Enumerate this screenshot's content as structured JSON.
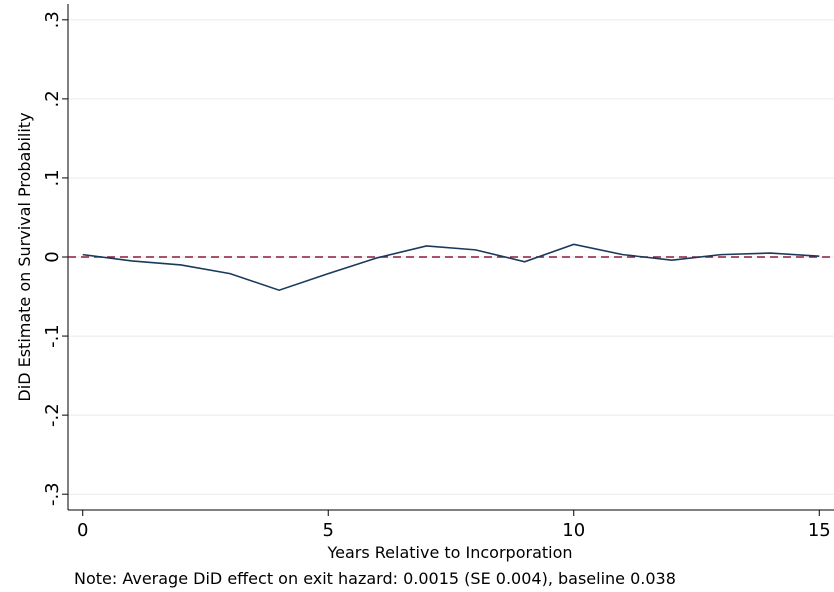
{
  "chart_data": {
    "type": "line",
    "x": [
      0,
      1,
      2,
      3,
      4,
      5,
      6,
      7,
      8,
      9,
      10,
      11,
      12,
      13,
      14,
      15
    ],
    "series": [
      {
        "name": "DiD estimate",
        "color": "#1a3a5c",
        "values": [
          0.003,
          -0.005,
          -0.01,
          -0.021,
          -0.042,
          -0.021,
          -0.001,
          0.014,
          0.009,
          -0.006,
          0.016,
          0.003,
          -0.004,
          0.003,
          0.005,
          0.001
        ]
      }
    ],
    "xlim": [
      -0.3,
      15.3
    ],
    "xticks": [
      0,
      5,
      10,
      15
    ],
    "ylim": [
      -0.32,
      0.32
    ],
    "yticks": [
      {
        "value": -0.3,
        "label": "-.3"
      },
      {
        "value": -0.2,
        "label": "-.2"
      },
      {
        "value": -0.1,
        "label": "-.1"
      },
      0,
      {
        "value": 0.1,
        "label": ".1"
      },
      {
        "value": 0.2,
        "label": ".2"
      },
      {
        "value": 0.3,
        "label": ".3"
      }
    ],
    "grid": true,
    "reference_line": {
      "value": 0,
      "color": "#8b1a3a"
    },
    "xlabel": "Years Relative to Incorporation",
    "ylabel": "DiD Estimate on Survival Probability",
    "note": "Note: Average DiD effect on exit hazard: 0.0015 (SE 0.004), baseline 0.038"
  }
}
